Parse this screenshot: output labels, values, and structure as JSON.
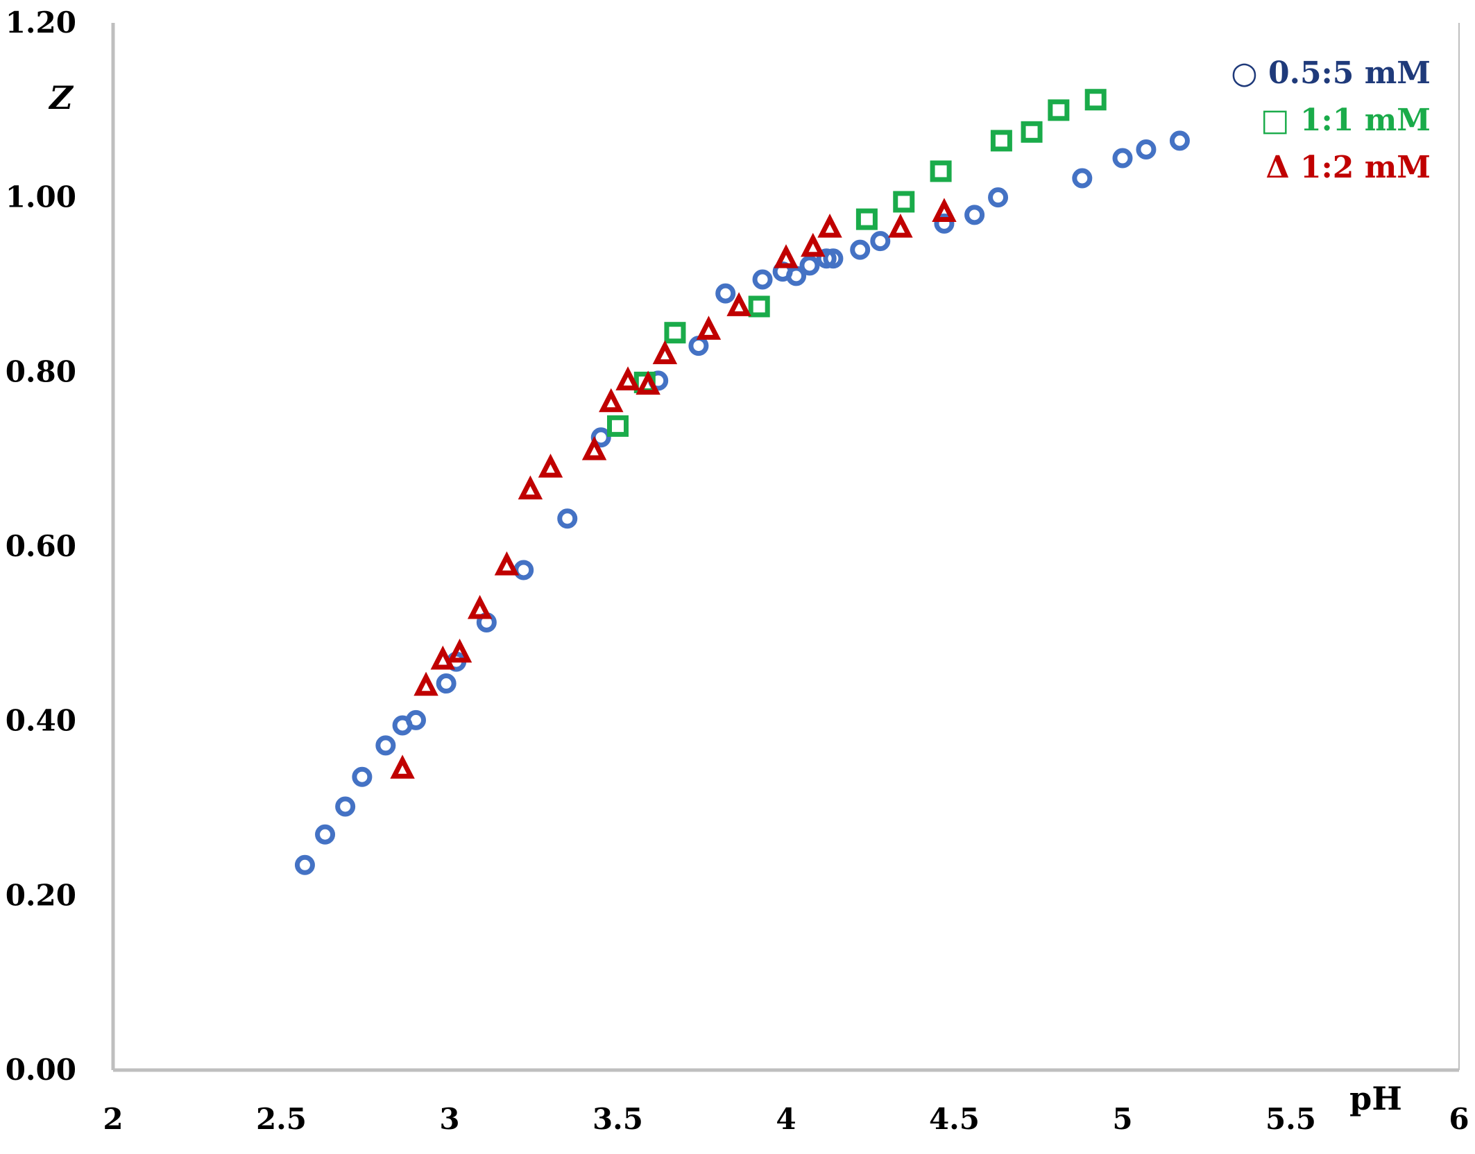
{
  "chart_data": {
    "type": "scatter",
    "title": "",
    "xlabel": "pH",
    "ylabel": "Z",
    "xlim": [
      2,
      6
    ],
    "ylim": [
      0,
      1.2
    ],
    "x_ticks": [
      "2",
      "2.5",
      "3",
      "3.5",
      "4",
      "4.5",
      "5",
      "5.5",
      "6"
    ],
    "y_ticks": [
      "0.00",
      "0.20",
      "0.40",
      "0.60",
      "0.80",
      "1.00",
      "1.20"
    ],
    "grid": false,
    "legend_position": "top-right",
    "series": [
      {
        "name": "0.5:5 mM",
        "legend_label": "○ 0.5:5 mM",
        "marker": "circle",
        "color": "#4472C4",
        "legend_color": "#1F3A7A",
        "points": [
          [
            2.57,
            0.235
          ],
          [
            2.63,
            0.27
          ],
          [
            2.69,
            0.302
          ],
          [
            2.74,
            0.336
          ],
          [
            2.81,
            0.372
          ],
          [
            2.86,
            0.395
          ],
          [
            2.9,
            0.401
          ],
          [
            2.99,
            0.443
          ],
          [
            3.02,
            0.468
          ],
          [
            3.11,
            0.513
          ],
          [
            3.22,
            0.573
          ],
          [
            3.35,
            0.632
          ],
          [
            3.45,
            0.725
          ],
          [
            3.62,
            0.79
          ],
          [
            3.74,
            0.83
          ],
          [
            3.82,
            0.89
          ],
          [
            3.93,
            0.906
          ],
          [
            3.99,
            0.915
          ],
          [
            4.03,
            0.91
          ],
          [
            4.07,
            0.922
          ],
          [
            4.12,
            0.93
          ],
          [
            4.14,
            0.93
          ],
          [
            4.22,
            0.94
          ],
          [
            4.28,
            0.95
          ],
          [
            4.47,
            0.97
          ],
          [
            4.56,
            0.98
          ],
          [
            4.63,
            1.0
          ],
          [
            4.88,
            1.022
          ],
          [
            5.0,
            1.045
          ],
          [
            5.07,
            1.055
          ],
          [
            5.17,
            1.065
          ]
        ]
      },
      {
        "name": "1:1 mM",
        "legend_label": "□ 1:1 mM",
        "marker": "square",
        "color": "#1AAB4A",
        "legend_color": "#1AAB4A",
        "points": [
          [
            3.5,
            0.738
          ],
          [
            3.58,
            0.788
          ],
          [
            3.67,
            0.845
          ],
          [
            3.92,
            0.875
          ],
          [
            4.24,
            0.975
          ],
          [
            4.35,
            0.995
          ],
          [
            4.46,
            1.03
          ],
          [
            4.64,
            1.065
          ],
          [
            4.73,
            1.075
          ],
          [
            4.81,
            1.1
          ],
          [
            4.92,
            1.112
          ]
        ]
      },
      {
        "name": "1:2 mM",
        "legend_label": "Δ 1:2 mM",
        "marker": "triangle",
        "color": "#C00000",
        "legend_color": "#C00000",
        "points": [
          [
            2.86,
            0.345
          ],
          [
            2.93,
            0.44
          ],
          [
            2.98,
            0.47
          ],
          [
            3.03,
            0.478
          ],
          [
            3.09,
            0.528
          ],
          [
            3.17,
            0.578
          ],
          [
            3.24,
            0.665
          ],
          [
            3.3,
            0.69
          ],
          [
            3.43,
            0.71
          ],
          [
            3.48,
            0.765
          ],
          [
            3.53,
            0.79
          ],
          [
            3.59,
            0.785
          ],
          [
            3.64,
            0.82
          ],
          [
            3.77,
            0.848
          ],
          [
            3.86,
            0.875
          ],
          [
            4.0,
            0.93
          ],
          [
            4.08,
            0.943
          ],
          [
            4.13,
            0.965
          ],
          [
            4.34,
            0.965
          ],
          [
            4.47,
            0.983
          ]
        ]
      }
    ]
  }
}
